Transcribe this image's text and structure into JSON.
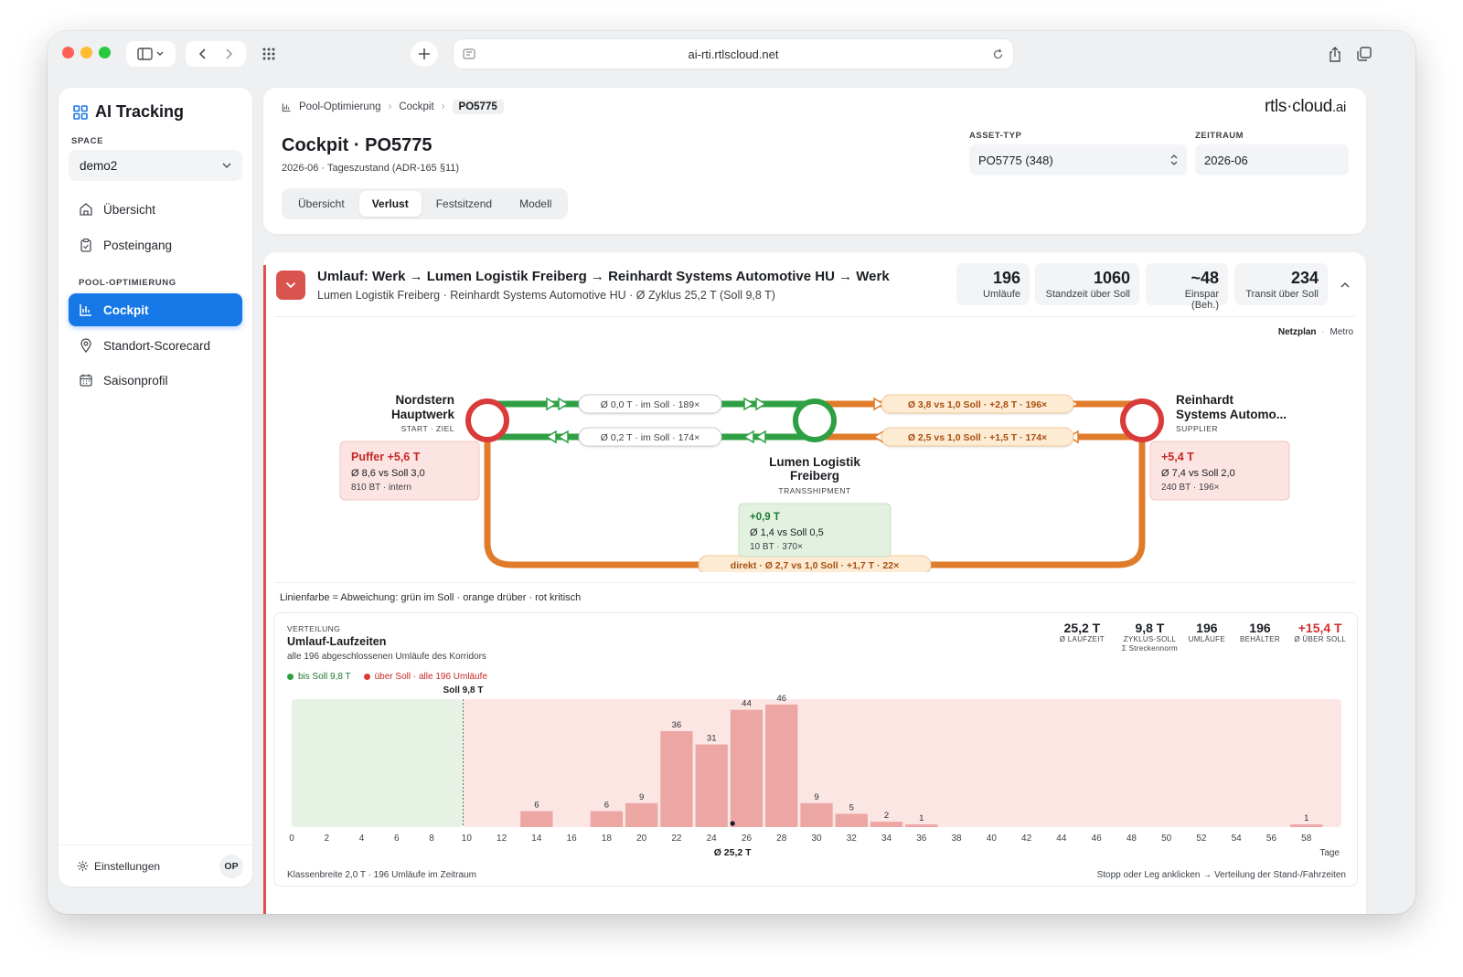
{
  "browser": {
    "url": "ai-rti.rtlscloud.net"
  },
  "sidebar": {
    "brand": "AI Tracking",
    "space_label": "SPACE",
    "space_value": "demo2",
    "nav": [
      {
        "label": "Übersicht"
      },
      {
        "label": "Posteingang"
      }
    ],
    "pool_label": "POOL-OPTIMIERUNG",
    "pool_nav": [
      {
        "label": "Cockpit"
      },
      {
        "label": "Standort-Scorecard"
      },
      {
        "label": "Saisonprofil"
      }
    ],
    "settings": "Einstellungen",
    "avatar": "OP"
  },
  "header": {
    "breadcrumb": [
      "Pool-Optimierung",
      "Cockpit",
      "PO5775"
    ],
    "logo_main": "rtls·cloud",
    "logo_suffix": ".ai",
    "title": "Cockpit · PO5775",
    "subtitle": "2026-06 · Tageszustand (ADR-165 §11)",
    "tabs": [
      "Übersicht",
      "Verlust",
      "Festsitzend",
      "Modell"
    ],
    "active_tab": "Verlust",
    "asset_label": "ASSET-TYP",
    "asset_value": "PO5775 (348)",
    "period_label": "ZEITRAUM",
    "period_value": "2026-06"
  },
  "route": {
    "title": "Umlauf: Werk → Lumen Logistik Freiberg → Reinhardt Systems Automotive HU → Werk",
    "subtitle": "Lumen Logistik Freiberg · Reinhardt Systems Automotive HU · Ø Zyklus 25,2 T (Soll 9,8 T)",
    "kpis": [
      {
        "value": "196",
        "label": "Umläufe"
      },
      {
        "value": "1060",
        "label": "Standzeit über Soll"
      },
      {
        "value": "~48",
        "label": "Einspar (Beh.)"
      },
      {
        "value": "234",
        "label": "Transit über Soll"
      }
    ],
    "view_active": "Netzplan",
    "view_sep": "·",
    "view_other": "Metro"
  },
  "network": {
    "nodes": {
      "start": {
        "name1": "Nordstern",
        "name2": "Hauptwerk",
        "role": "START · ZIEL"
      },
      "mid": {
        "name1": "Lumen Logistik",
        "name2": "Freiberg",
        "role": "TRANSSHIPMENT"
      },
      "end": {
        "name1": "Reinhardt",
        "name2": "Systems Automo...",
        "role": "SUPPLIER"
      }
    },
    "legs": {
      "a_out": "Ø 0,0 T · im Soll · 189×",
      "a_back": "Ø 0,2 T · im Soll · 174×",
      "b_out": "Ø 3,8 vs 1,0 Soll · +2,8 T · 196×",
      "b_back": "Ø 2,5 vs 1,0 Soll · +1,5 T · 174×",
      "direct": "direkt · Ø 2,7 vs 1,0 Soll · +1,7 T · 22×"
    },
    "boxes": {
      "start": {
        "head": "Puffer +5,6 T",
        "line": "Ø 8,6 vs Soll 3,0",
        "foot": "810 BT · intern"
      },
      "end": {
        "head": "+5,4 T",
        "line": "Ø 7,4 vs Soll 2,0",
        "foot": "240 BT · 196×"
      },
      "mid": {
        "head": "+0,9 T",
        "line": "Ø 1,4 vs Soll 0,5",
        "foot": "10 BT · 370×"
      }
    },
    "colors": {
      "ok": "#2ea043",
      "over": "#e07b2a",
      "critical": "#d93a3a"
    },
    "legend": "Linienfarbe = Abweichung: grün im Soll · orange drüber · rot kritisch"
  },
  "distribution": {
    "overline": "VERTEILUNG",
    "title": "Umlauf-Laufzeiten",
    "subtitle": "alle 196 abgeschlossenen Umläufe des Korridors",
    "legend_ok": "bis Soll 9,8 T",
    "legend_over": "über Soll · alle 196 Umläufe",
    "stats": [
      {
        "value": "25,2 T",
        "label": "Ø LAUFZEIT",
        "label2": ""
      },
      {
        "value": "9,8 T",
        "label": "ZYKLUS-SOLL",
        "label2": "Σ Streckennorm"
      },
      {
        "value": "196",
        "label": "UMLÄUFE",
        "label2": ""
      },
      {
        "value": "196",
        "label": "BEHÄLTER",
        "label2": ""
      },
      {
        "value": "+15,4 T",
        "label": "Ø ÜBER SOLL",
        "label2": ""
      }
    ],
    "footer_left": "Klassenbreite 2,0 T · 196 Umläufe im Zeitraum",
    "footer_right": "Stopp oder Leg anklicken → Verteilung der Stand-/Fahrzeiten"
  },
  "chart_data": {
    "type": "bar",
    "title": "Umlauf-Laufzeiten",
    "xlabel": "Tage",
    "x": [
      14,
      18,
      20,
      22,
      24,
      26,
      28,
      30,
      32,
      34,
      36,
      58
    ],
    "values": [
      6,
      6,
      9,
      36,
      31,
      44,
      46,
      9,
      5,
      2,
      1,
      1
    ],
    "bin_width": 2,
    "xlim": [
      0,
      60
    ],
    "xticks": [
      0,
      2,
      4,
      6,
      8,
      10,
      12,
      14,
      16,
      18,
      20,
      22,
      24,
      26,
      28,
      30,
      32,
      34,
      36,
      38,
      40,
      42,
      44,
      46,
      48,
      50,
      52,
      54,
      56,
      58
    ],
    "ylim": [
      0,
      48
    ],
    "soll": 9.8,
    "soll_label": "Soll 9,8 T",
    "mean": 25.2,
    "mean_label": "Ø 25,2 T",
    "colors": {
      "bar": "#eca6a4",
      "ok_zone": "#e6f2e4",
      "over_zone": "#fbe6e4"
    }
  }
}
